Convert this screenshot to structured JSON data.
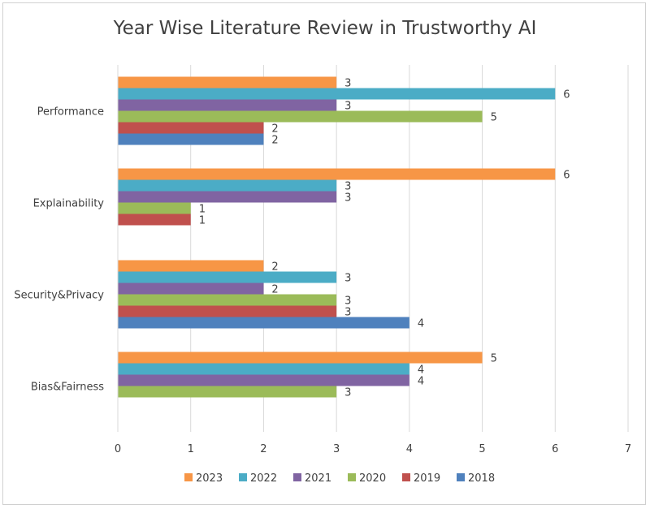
{
  "chart_data": {
    "type": "bar",
    "orientation": "horizontal",
    "title": "Year Wise Literature Review in Trustworthy AI",
    "categories": [
      "Performance",
      "Explainability",
      "Security&Privacy",
      "Bias&Fairness"
    ],
    "series": [
      {
        "name": "2023",
        "color": "#F79646",
        "values": [
          3,
          6,
          2,
          5
        ]
      },
      {
        "name": "2022",
        "color": "#4BACC6",
        "values": [
          6,
          3,
          3,
          4
        ]
      },
      {
        "name": "2021",
        "color": "#8064A2",
        "values": [
          3,
          3,
          2,
          4
        ]
      },
      {
        "name": "2020",
        "color": "#9BBB59",
        "values": [
          5,
          1,
          3,
          3
        ]
      },
      {
        "name": "2019",
        "color": "#C0504D",
        "values": [
          2,
          1,
          3,
          null
        ]
      },
      {
        "name": "2018",
        "color": "#4F81BD",
        "values": [
          2,
          null,
          4,
          null
        ]
      }
    ],
    "xlim": [
      0,
      7
    ],
    "xticks": [
      "0",
      "1",
      "2",
      "3",
      "4",
      "5",
      "6",
      "7"
    ],
    "grid": "vertical",
    "legend_position": "bottom",
    "data_labels": true
  }
}
